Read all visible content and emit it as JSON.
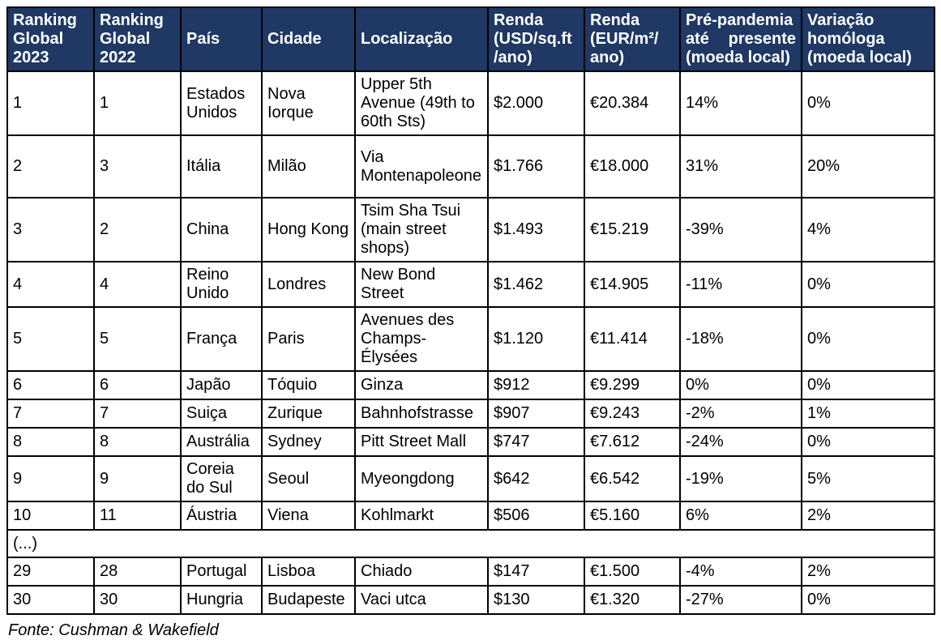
{
  "colors": {
    "header_bg": "#1f3864",
    "header_text": "#ffffff",
    "border": "#000000",
    "body_text": "#000000"
  },
  "table": {
    "headers": [
      "Ranking Global 2023",
      "Ranking Global 2022",
      "País",
      "Cidade",
      "Localização",
      "Renda (USD/sq.ft /ano)",
      "Renda (EUR/m²/ ano)",
      "Pré-pandemia até presente (moeda local)",
      "Variação homóloga (moeda local)"
    ],
    "rows": [
      [
        "1",
        "1",
        "Estados Unidos",
        "Nova Iorque",
        "Upper 5th Avenue (49th to 60th Sts)",
        "$2.000",
        "€20.384",
        "14%",
        "0%"
      ],
      [
        "2",
        "3",
        "Itália",
        "Milão",
        "Via Montenapoleone",
        "$1.766",
        "€18.000",
        "31%",
        "20%"
      ],
      [
        "3",
        "2",
        "China",
        "Hong Kong",
        "Tsim Sha Tsui (main street shops)",
        "$1.493",
        "€15.219",
        "-39%",
        "4%"
      ],
      [
        "4",
        "4",
        "Reino Unido",
        "Londres",
        "New Bond Street",
        "$1.462",
        "€14.905",
        "-11%",
        "0%"
      ],
      [
        "5",
        "5",
        "França",
        "Paris",
        "Avenues des Champs-Élysées",
        "$1.120",
        "€11.414",
        "-18%",
        "0%"
      ],
      [
        "6",
        "6",
        "Japão",
        "Tóquio",
        "Ginza",
        "$912",
        "€9.299",
        "0%",
        "0%"
      ],
      [
        "7",
        "7",
        "Suiça",
        "Zurique",
        "Bahnhofstrasse",
        "$907",
        "€9.243",
        "-2%",
        "1%"
      ],
      [
        "8",
        "8",
        "Austrália",
        "Sydney",
        "Pitt Street Mall",
        "$747",
        "€7.612",
        "-24%",
        "0%"
      ],
      [
        "9",
        "9",
        "Coreia do Sul",
        "Seoul",
        "Myeongdong",
        "$642",
        "€6.542",
        "-19%",
        "5%"
      ],
      [
        "10",
        "11",
        "Áustria",
        "Viena",
        "Kohlmarkt",
        "$506",
        "€5.160",
        "6%",
        "2%"
      ]
    ],
    "ellipsis": "(...)",
    "bottom_rows": [
      [
        "29",
        "28",
        "Portugal",
        "Lisboa",
        "Chiado",
        "$147",
        "€1.500",
        "-4%",
        "2%"
      ],
      [
        "30",
        "30",
        "Hungria",
        "Budapeste",
        "Vaci utca",
        "$130",
        "€1.320",
        "-27%",
        "0%"
      ]
    ]
  },
  "footer": {
    "source": "Fonte: Cushman & Wakefield"
  }
}
